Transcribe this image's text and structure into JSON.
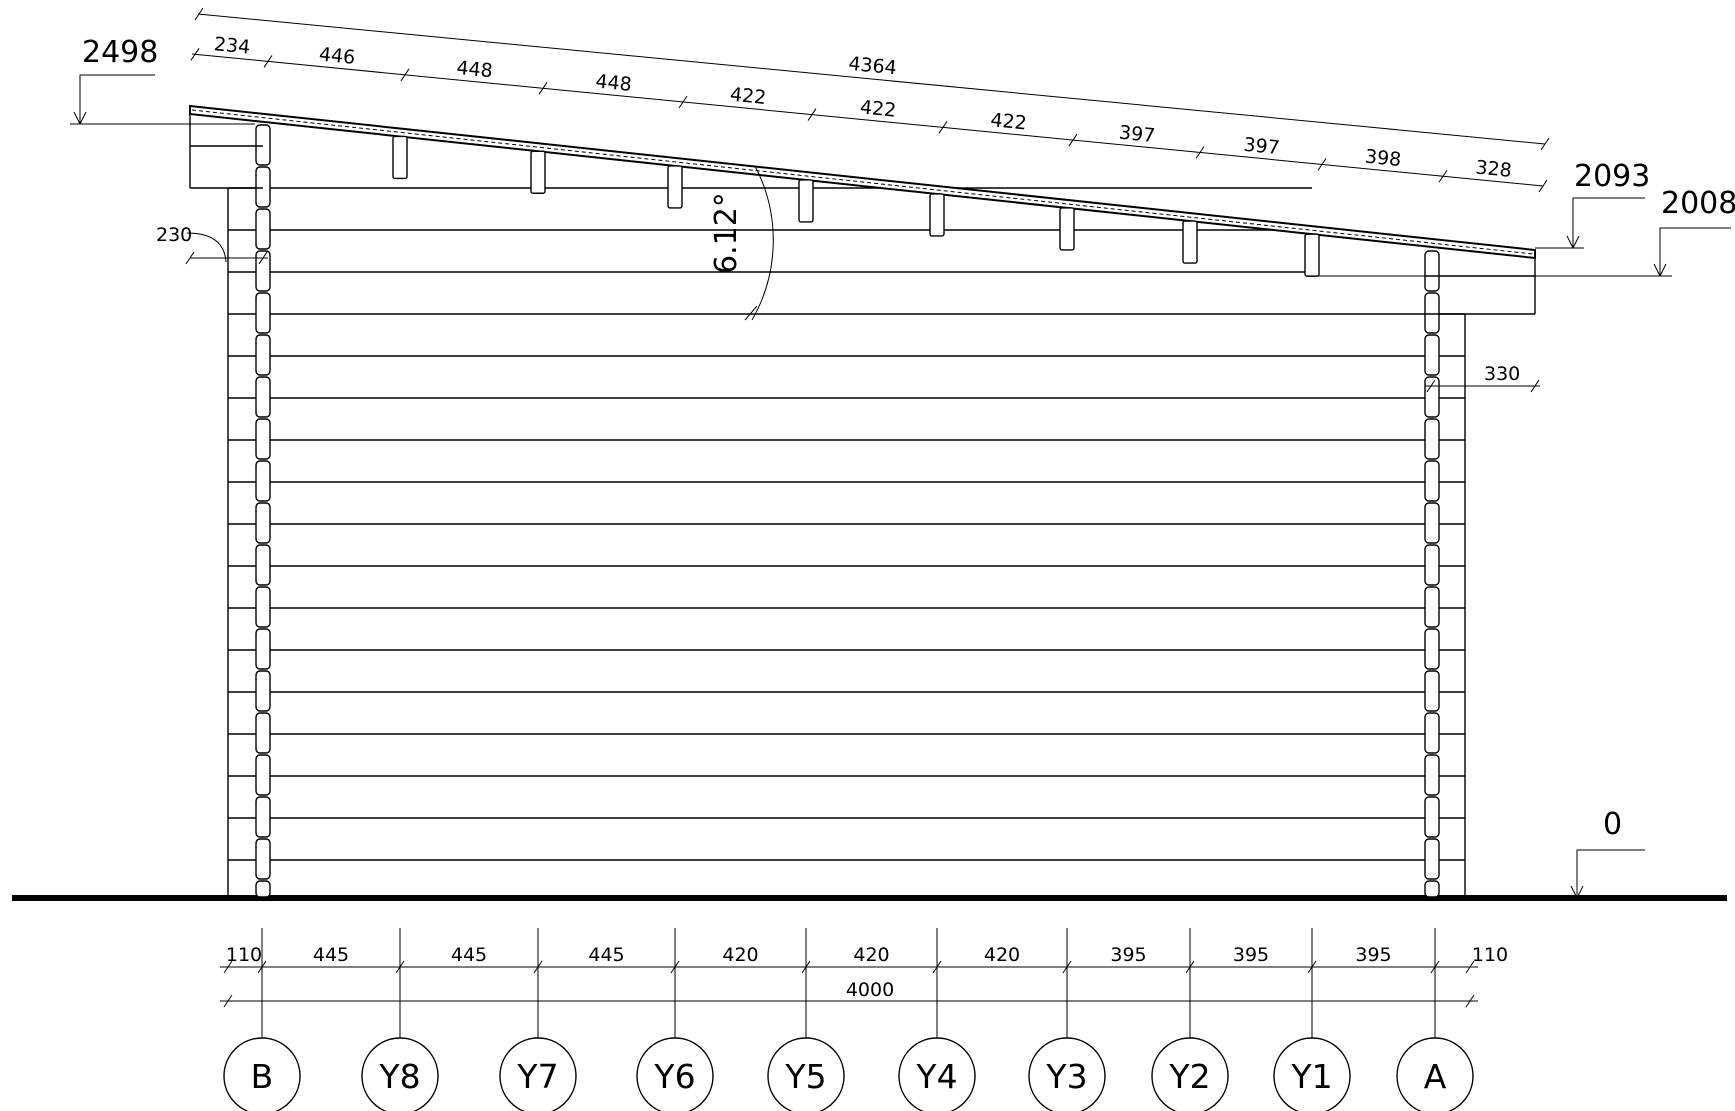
{
  "drawing": {
    "roof_dims_top": [
      "234",
      "446",
      "448",
      "448",
      "422",
      "422",
      "422",
      "397",
      "397",
      "398",
      "328"
    ],
    "roof_total": "4364",
    "angle_label": "6.12°",
    "level_left": "2498",
    "level_right_top": "2093",
    "level_right_lower": "2008",
    "level_ground": "0",
    "left_overhang": "230",
    "right_overhang": "330",
    "base_dims": [
      "110",
      "445",
      "445",
      "445",
      "420",
      "420",
      "420",
      "395",
      "395",
      "395",
      "110"
    ],
    "base_total": "4000",
    "axes": [
      "B",
      "Y8",
      "Y7",
      "Y6",
      "Y5",
      "Y4",
      "Y3",
      "Y2",
      "Y1",
      "A"
    ]
  }
}
